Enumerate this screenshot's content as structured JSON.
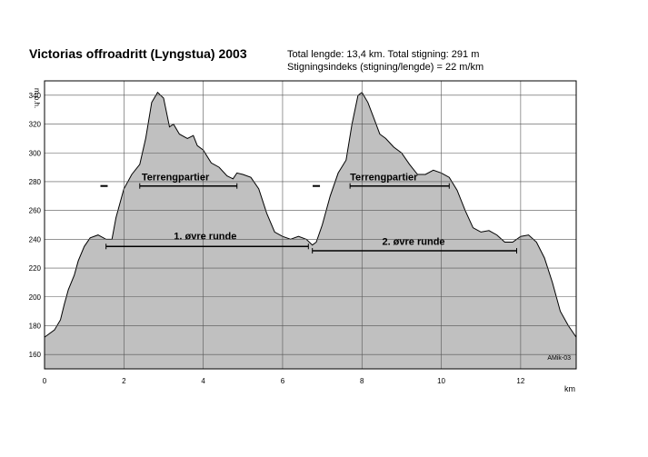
{
  "header": {
    "title": "Victorias offroadritt (Lyngstua) 2003",
    "stats_line1": "Total lengde: 13,4 km. Total stigning: 291  m",
    "stats_line2": "Stigningsindeks (stigning/lengde) = 22  m/km"
  },
  "chart_data": {
    "type": "area",
    "title": "Victorias offroadritt (Lyngstua) 2003",
    "xlabel": "km",
    "ylabel": "m o.h.",
    "xlim": [
      0,
      13.4
    ],
    "ylim": [
      150,
      350
    ],
    "xticks": [
      0,
      2,
      4,
      6,
      8,
      10,
      12
    ],
    "yticks": [
      160,
      180,
      200,
      220,
      240,
      260,
      280,
      300,
      320,
      340
    ],
    "grid": true,
    "fill_color": "#c0c0c0",
    "series": [
      {
        "x": [
          0,
          0.25,
          0.4,
          0.5,
          0.6,
          0.75,
          0.85,
          1.0,
          1.15,
          1.35,
          1.55,
          1.7,
          1.8,
          2.0,
          2.2,
          2.4,
          2.55,
          2.7,
          2.85,
          3.0,
          3.15,
          3.25,
          3.4,
          3.6,
          3.75,
          3.85,
          4.0,
          4.2,
          4.4,
          4.6,
          4.75,
          4.85,
          5.0,
          5.2,
          5.4,
          5.6,
          5.8,
          6.0,
          6.2,
          6.4,
          6.6,
          6.75,
          6.85,
          7.0,
          7.2,
          7.4,
          7.6,
          7.75,
          7.9,
          8.0,
          8.15,
          8.3,
          8.45,
          8.6,
          8.8,
          9.0,
          9.2,
          9.4,
          9.6,
          9.8,
          10.0,
          10.2,
          10.4,
          10.6,
          10.8,
          11.0,
          11.2,
          11.4,
          11.6,
          11.8,
          12.0,
          12.2,
          12.4,
          12.6,
          12.8,
          13.0,
          13.2,
          13.4
        ],
        "values": [
          172,
          177,
          184,
          195,
          205,
          215,
          225,
          235,
          241,
          243,
          240,
          240,
          255,
          275,
          285,
          292,
          310,
          335,
          342,
          338,
          318,
          320,
          313,
          310,
          312,
          305,
          302,
          293,
          290,
          284,
          282,
          286,
          285,
          283,
          275,
          258,
          245,
          242,
          240,
          242,
          240,
          236,
          238,
          250,
          270,
          286,
          295,
          320,
          340,
          342,
          335,
          324,
          313,
          310,
          304,
          300,
          292,
          285,
          285,
          288,
          286,
          283,
          274,
          260,
          248,
          245,
          246,
          243,
          238,
          238,
          242,
          243,
          238,
          227,
          210,
          190,
          180,
          172
        ]
      }
    ],
    "annotations": [
      {
        "text": "Terrengpartier",
        "x": 3.3,
        "y": 281,
        "line_x": [
          2.4,
          4.85
        ],
        "line_y": 277,
        "marker_x": 1.5,
        "marker_y": 277
      },
      {
        "text": "Terrengpartier",
        "x": 8.55,
        "y": 281,
        "line_x": [
          7.7,
          10.2
        ],
        "line_y": 277,
        "marker_x": 6.85,
        "marker_y": 277
      },
      {
        "text": "1. øvre runde",
        "x": 4.05,
        "y": 240,
        "line_x": [
          1.55,
          6.65
        ],
        "line_y": 235
      },
      {
        "text": "2. øvre runde",
        "x": 9.3,
        "y": 236,
        "line_x": [
          6.75,
          11.9
        ],
        "line_y": 232
      }
    ],
    "credit": "AMik-03"
  }
}
